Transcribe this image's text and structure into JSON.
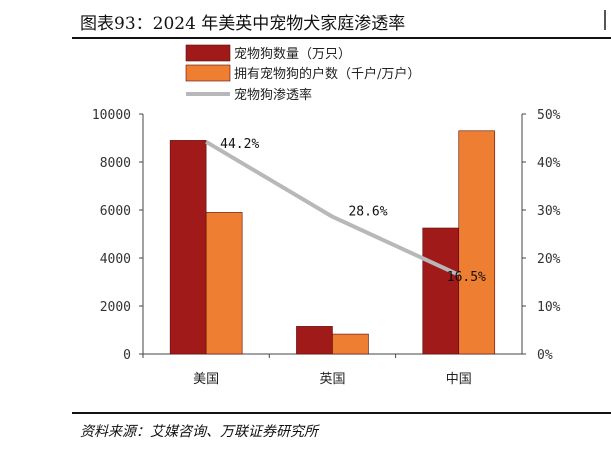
{
  "title": "图表93：2024 年美英中宠物犬家庭渗透率",
  "source": "资料来源：艾媒咨询、万联证券研究所",
  "chart_data": {
    "type": "bar",
    "categories": [
      "美国",
      "英国",
      "中国"
    ],
    "series": [
      {
        "name": "宠物狗数量（万只）",
        "type": "bar",
        "axis": "left",
        "color": "#a11a1a",
        "values": [
          8900,
          1150,
          5250
        ]
      },
      {
        "name": "拥有宠物狗的户数（千户/万户）",
        "type": "bar",
        "axis": "left",
        "color": "#ee7e31",
        "values": [
          5900,
          830,
          9300
        ]
      },
      {
        "name": "宠物狗渗透率",
        "type": "line",
        "axis": "right",
        "color": "#b8b8b8",
        "values": [
          44.2,
          28.6,
          16.5
        ]
      }
    ],
    "data_labels": [
      "44.2%",
      "28.6%",
      "16.5%"
    ],
    "y_left": {
      "ylim": [
        0,
        10000
      ],
      "ticks": [
        "0",
        "2000",
        "4000",
        "6000",
        "8000",
        "10000"
      ]
    },
    "y_right": {
      "ylim": [
        0,
        50
      ],
      "ticks": [
        "0%",
        "10%",
        "20%",
        "30%",
        "40%",
        "50%"
      ]
    },
    "legend": "top",
    "grid": false
  }
}
